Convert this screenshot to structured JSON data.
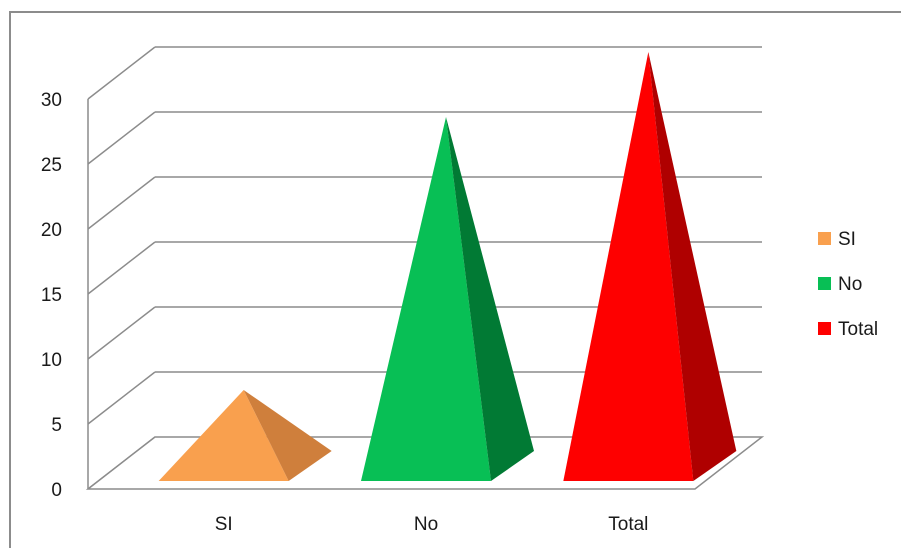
{
  "chart_data": {
    "type": "bar",
    "shape": "pyramid-3d",
    "categories": [
      "SI",
      "No",
      "Total"
    ],
    "series": [
      {
        "name": "SI",
        "values": [
          5,
          null,
          null
        ],
        "color": "#f9a04e",
        "shade": "#cf7f3c"
      },
      {
        "name": "No",
        "values": [
          null,
          26,
          null
        ],
        "color": "#08bf55",
        "shade": "#017a34"
      },
      {
        "name": "Total",
        "values": [
          null,
          null,
          31
        ],
        "color": "#fe0000",
        "shade": "#af0000"
      }
    ],
    "y_ticks": [
      "0",
      "5",
      "10",
      "15",
      "20",
      "25",
      "30"
    ],
    "ylim": [
      0,
      30
    ],
    "grid": true,
    "legend_position": "right"
  }
}
